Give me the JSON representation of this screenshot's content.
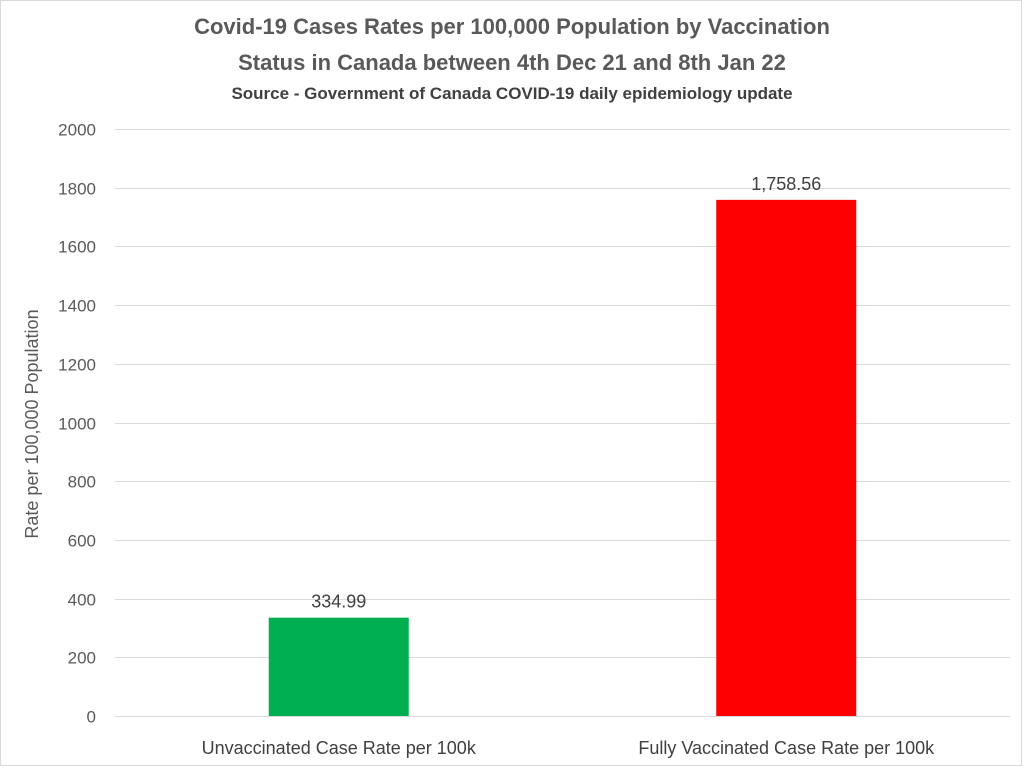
{
  "chart_data": {
    "type": "bar",
    "title_line1": "Covid-19 Cases Rates per 100,000 Population by Vaccination",
    "title_line2": "Status in Canada between 4th Dec 21 and 8th Jan 22",
    "subtitle": "Source - Government of Canada COVID-19 daily epidemiology update",
    "ylabel": "Rate per 100,000 Population",
    "xlabel": "",
    "categories": [
      "Unvaccinated Case Rate per 100k",
      "Fully Vaccinated Case Rate per 100k"
    ],
    "values": [
      334.99,
      1758.56
    ],
    "value_labels": [
      "334.99",
      "1,758.56"
    ],
    "bar_colors": [
      "#00b050",
      "#ff0000"
    ],
    "ylim": [
      0,
      2000
    ],
    "yticks": [
      0,
      200,
      400,
      600,
      800,
      1000,
      1200,
      1400,
      1600,
      1800,
      2000
    ],
    "grid": true,
    "legend": "none"
  }
}
